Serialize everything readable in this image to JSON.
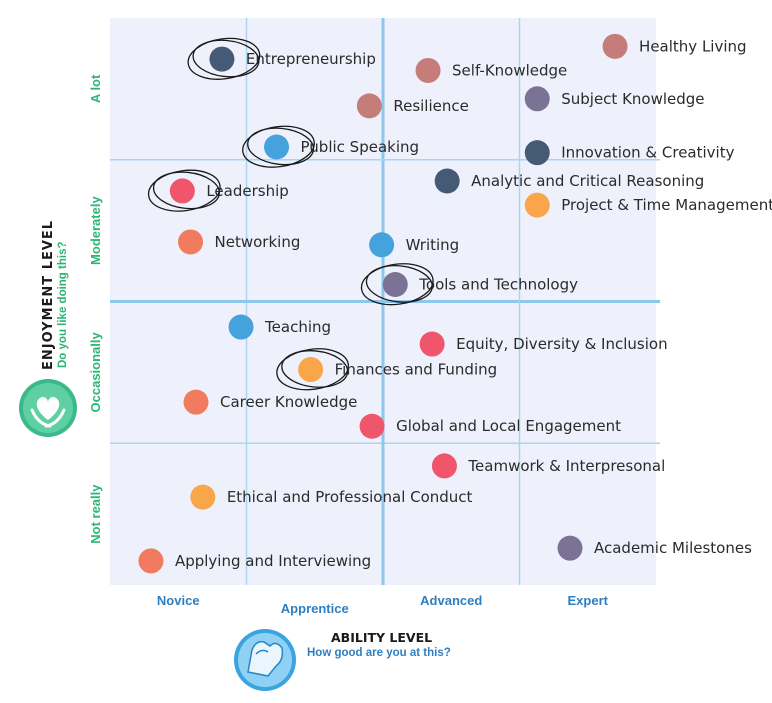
{
  "chart_data": {
    "type": "scatter",
    "x_axis": {
      "title": "ABILITY LEVEL",
      "subtitle": "How good are you at this?",
      "categories": [
        "Novice",
        "Apprentice",
        "Advanced",
        "Expert"
      ],
      "range": [
        0,
        4
      ]
    },
    "y_axis": {
      "title": "ENJOYMENT LEVEL",
      "subtitle": "Do you like doing this?",
      "categories": [
        "Not really",
        "Occasionally",
        "Moderately",
        "A lot"
      ],
      "range": [
        0,
        4
      ]
    },
    "grid": true,
    "colors": {
      "red": "#f0566b",
      "salmon": "#f07b5e",
      "rose": "#c47d78",
      "orange": "#f9a64a",
      "blue": "#45a2dd",
      "navy": "#455b75",
      "purple": "#7a7396",
      "ring": "#1a1a1a"
    },
    "points": [
      {
        "label": "Entrepreneurship",
        "x": 0.82,
        "y": 3.71,
        "color": "navy",
        "circled": true
      },
      {
        "label": "Healthy Living",
        "x": 3.7,
        "y": 3.8,
        "color": "rose",
        "circled": false
      },
      {
        "label": "Self-Knowledge",
        "x": 2.33,
        "y": 3.63,
        "color": "rose",
        "circled": false
      },
      {
        "label": "Subject Knowledge",
        "x": 3.13,
        "y": 3.43,
        "color": "purple",
        "circled": false
      },
      {
        "label": "Resilience",
        "x": 1.9,
        "y": 3.38,
        "color": "rose",
        "circled": false
      },
      {
        "label": "Public Speaking",
        "x": 1.22,
        "y": 3.09,
        "color": "blue",
        "circled": true
      },
      {
        "label": "Innovation & Creativity",
        "x": 3.13,
        "y": 3.05,
        "color": "navy",
        "circled": false
      },
      {
        "label": "Analytic and Critical Reasoning",
        "x": 2.47,
        "y": 2.85,
        "color": "navy",
        "circled": false
      },
      {
        "label": "Leadership",
        "x": 0.53,
        "y": 2.78,
        "color": "red",
        "circled": true
      },
      {
        "label": "Project & Time Management",
        "x": 3.13,
        "y": 2.68,
        "color": "orange",
        "circled": false
      },
      {
        "label": "Networking",
        "x": 0.59,
        "y": 2.42,
        "color": "salmon",
        "circled": false
      },
      {
        "label": "Writing",
        "x": 1.99,
        "y": 2.4,
        "color": "blue",
        "circled": false
      },
      {
        "label": "Tools and Technology",
        "x": 2.09,
        "y": 2.12,
        "color": "purple",
        "circled": true
      },
      {
        "label": "Teaching",
        "x": 0.96,
        "y": 1.82,
        "color": "blue",
        "circled": false
      },
      {
        "label": "Equity, Diversity & Inclusion",
        "x": 2.36,
        "y": 1.7,
        "color": "red",
        "circled": false
      },
      {
        "label": "Finances and Funding",
        "x": 1.47,
        "y": 1.52,
        "color": "orange",
        "circled": true
      },
      {
        "label": "Career Knowledge",
        "x": 0.63,
        "y": 1.29,
        "color": "salmon",
        "circled": false
      },
      {
        "label": "Global and Local Engagement",
        "x": 1.92,
        "y": 1.12,
        "color": "red",
        "circled": false
      },
      {
        "label": "Teamwork & Interpresonal",
        "x": 2.45,
        "y": 0.84,
        "color": "red",
        "circled": false
      },
      {
        "label": "Ethical and Professional Conduct",
        "x": 0.68,
        "y": 0.62,
        "color": "orange",
        "circled": false
      },
      {
        "label": "Applying and Interviewing",
        "x": 0.3,
        "y": 0.17,
        "color": "salmon",
        "circled": false
      },
      {
        "label": "Academic Milestones",
        "x": 3.37,
        "y": 0.26,
        "color": "purple",
        "circled": false
      }
    ]
  },
  "icons": {
    "enjoyment": "heart-hands-icon",
    "ability": "flexed-arm-icon"
  }
}
